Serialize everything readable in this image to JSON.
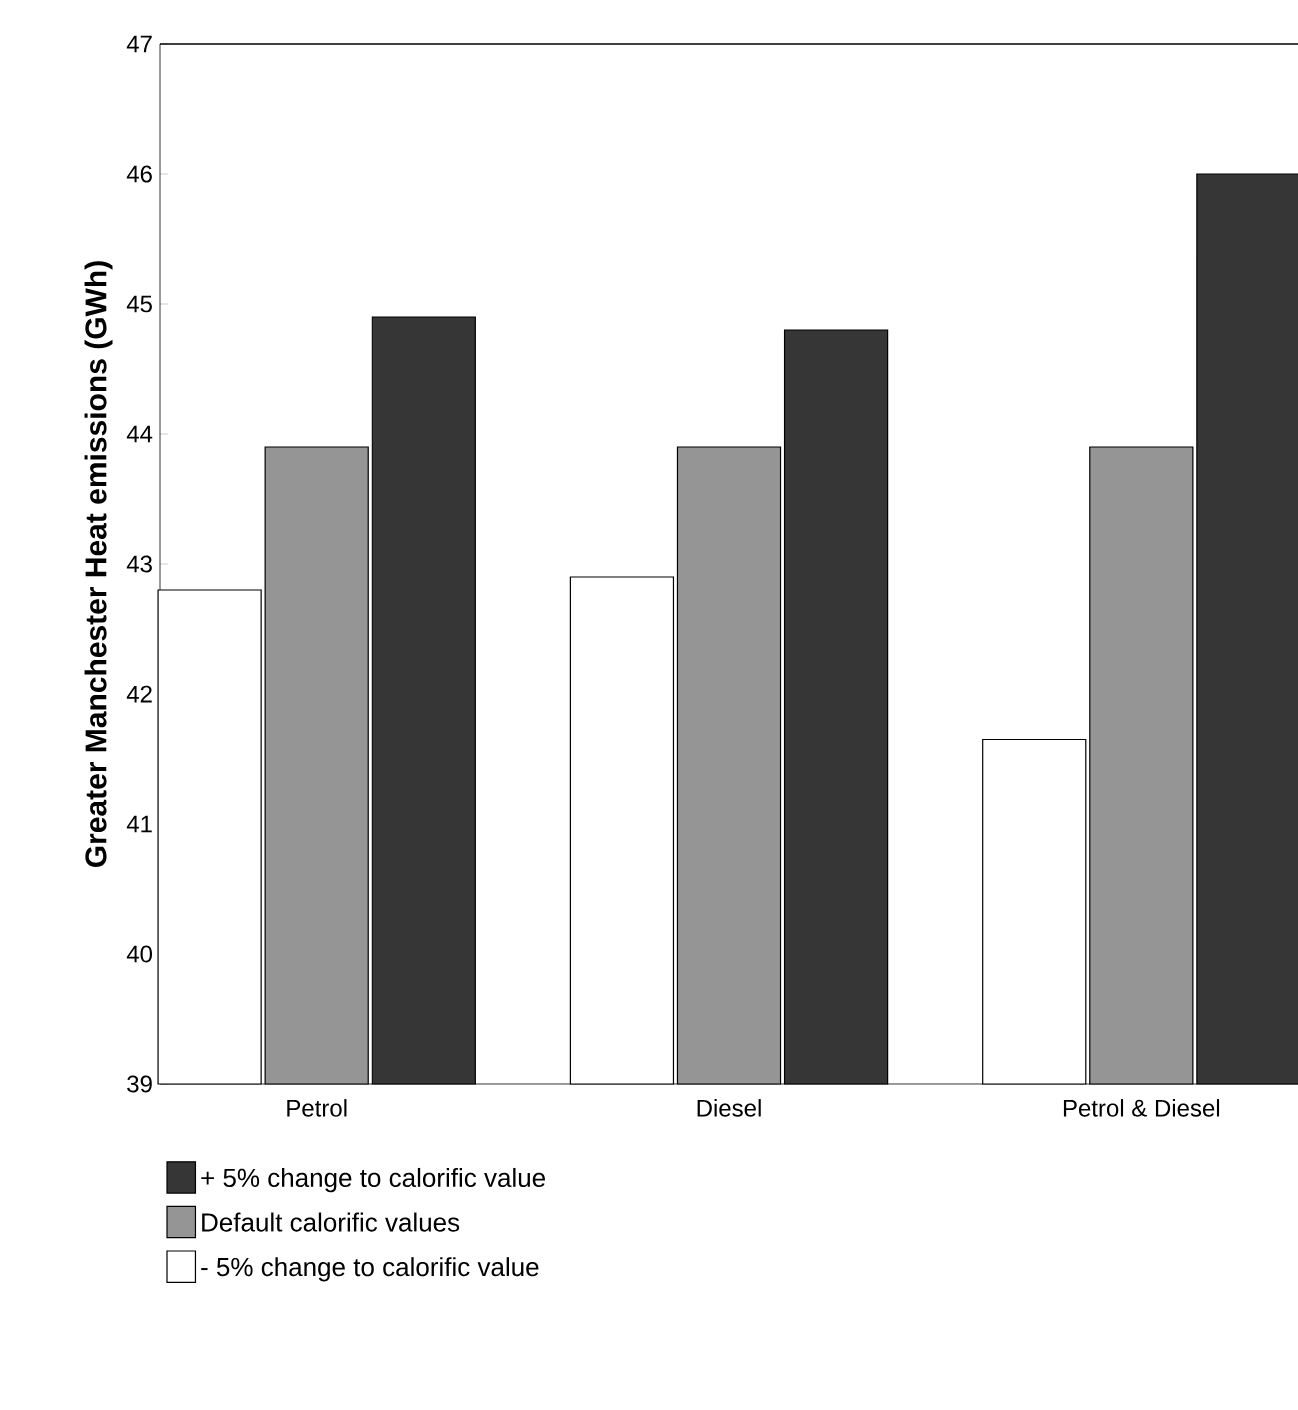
{
  "chart_data": {
    "type": "bar",
    "ylabel": "Greater Manchester Heat emissions (GWh)",
    "categories": [
      "Petrol",
      "Diesel",
      "Petrol & Diesel"
    ],
    "series": [
      {
        "name": "- 5% change to calorific value",
        "color": "#ffffff",
        "values": [
          42.8,
          42.9,
          41.65
        ]
      },
      {
        "name": "Default calorific values",
        "color": "#959595",
        "values": [
          43.9,
          43.9,
          43.9
        ]
      },
      {
        "name": "+ 5% change to calorific value",
        "color": "#363636",
        "values": [
          44.9,
          44.8,
          46.0
        ]
      }
    ],
    "ylim": [
      39,
      47
    ],
    "yticks": [
      39,
      40,
      41,
      42,
      43,
      44,
      45,
      46,
      47
    ],
    "legend": "bottom",
    "grid": false
  }
}
